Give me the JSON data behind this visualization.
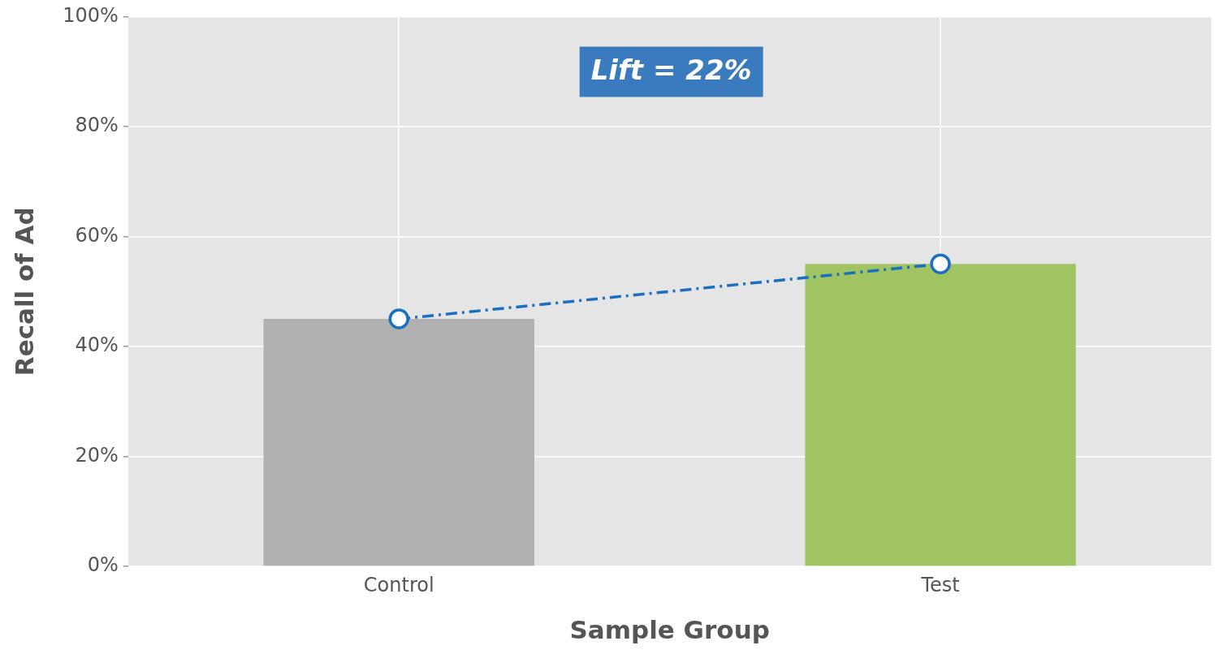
{
  "chart_data": {
    "type": "bar",
    "xlabel": "Sample Group",
    "ylabel": "Recall of Ad",
    "categories": [
      "Control",
      "Test"
    ],
    "series": [
      {
        "colors": [
          "#b0b0b0",
          "#a0c462"
        ],
        "values": [
          45,
          55
        ]
      },
      {
        "type": "line",
        "color": "#1a6fbf",
        "values": [
          45,
          55
        ],
        "marker": "circle",
        "line_style": "dashed"
      }
    ],
    "ylim": [
      0,
      100
    ],
    "yticks": [
      {
        "value": 0,
        "label": "0%"
      },
      {
        "value": 20,
        "label": "20%"
      },
      {
        "value": 40,
        "label": "40%"
      },
      {
        "value": 60,
        "label": "60%"
      },
      {
        "value": 80,
        "label": "80%"
      },
      {
        "value": 100,
        "label": "100%"
      }
    ],
    "grid": true,
    "legend": false,
    "annotations": [
      "Lift = 22%"
    ]
  }
}
